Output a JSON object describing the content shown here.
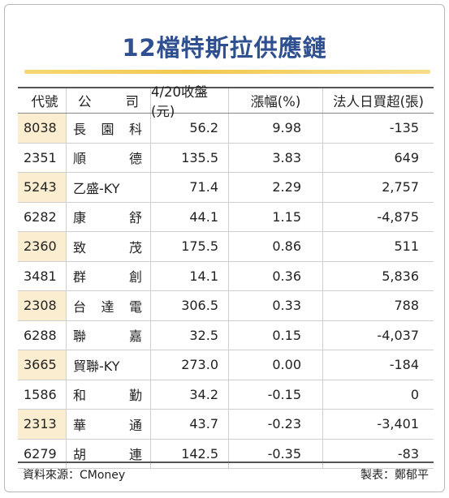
{
  "title": "12檔特斯拉供應鏈",
  "headers": {
    "code": "代號",
    "name_a": "公",
    "name_b": "司",
    "close": "4/20收盤(元)",
    "change": "漲幅(%)",
    "net": "法人日買超(張)"
  },
  "rows": [
    {
      "code": "8038",
      "name": [
        "長",
        "園",
        "科"
      ],
      "close": "56.2",
      "change": "9.98",
      "net": "-135"
    },
    {
      "code": "2351",
      "name": [
        "順",
        "德"
      ],
      "close": "135.5",
      "change": "3.83",
      "net": "649"
    },
    {
      "code": "5243",
      "name": [
        "乙盛-KY"
      ],
      "close": "71.4",
      "change": "2.29",
      "net": "2,757"
    },
    {
      "code": "6282",
      "name": [
        "康",
        "舒"
      ],
      "close": "44.1",
      "change": "1.15",
      "net": "-4,875"
    },
    {
      "code": "2360",
      "name": [
        "致",
        "茂"
      ],
      "close": "175.5",
      "change": "0.86",
      "net": "511"
    },
    {
      "code": "3481",
      "name": [
        "群",
        "創"
      ],
      "close": "14.1",
      "change": "0.36",
      "net": "5,836"
    },
    {
      "code": "2308",
      "name": [
        "台",
        "達",
        "電"
      ],
      "close": "306.5",
      "change": "0.33",
      "net": "788"
    },
    {
      "code": "6288",
      "name": [
        "聯",
        "嘉"
      ],
      "close": "32.5",
      "change": "0.15",
      "net": "-4,037"
    },
    {
      "code": "3665",
      "name": [
        "貿聯-KY"
      ],
      "close": "273.0",
      "change": "0.00",
      "net": "-184"
    },
    {
      "code": "1586",
      "name": [
        "和",
        "勤"
      ],
      "close": "34.2",
      "change": "-0.15",
      "net": "0"
    },
    {
      "code": "2313",
      "name": [
        "華",
        "通"
      ],
      "close": "43.7",
      "change": "-0.23",
      "net": "-3,401"
    },
    {
      "code": "6279",
      "name": [
        "胡",
        "連"
      ],
      "close": "142.5",
      "change": "-0.35",
      "net": "-83"
    }
  ],
  "footer": {
    "source": "資料來源：CMoney",
    "credit": "製表：鄭郁平"
  },
  "colors": {
    "title": "#2e4f90",
    "accent_rule": "#f2c94c",
    "code_highlight": "#fbeed0"
  }
}
